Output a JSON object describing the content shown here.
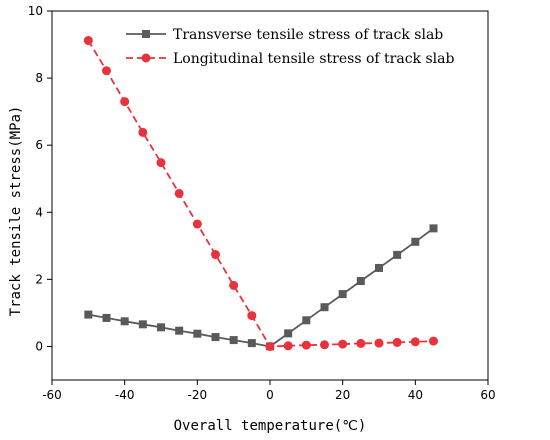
{
  "chart_data": {
    "type": "line",
    "xlabel": "Overall temperature(℃)",
    "ylabel": "Track tensile stress(MPa)",
    "xlim": [
      -60,
      60
    ],
    "ylim": [
      -1,
      10
    ],
    "xticks": [
      -60,
      -40,
      -20,
      0,
      20,
      40,
      60
    ],
    "yticks": [
      0,
      2,
      4,
      6,
      8,
      10
    ],
    "grid": false,
    "legend_position": "top-right",
    "series": [
      {
        "name": "Transverse tensile stress of track slab",
        "color": "#5a5a5a",
        "marker": "square",
        "line_style": "solid",
        "x": [
          -50,
          -45,
          -40,
          -35,
          -30,
          -25,
          -20,
          -15,
          -10,
          -5,
          0,
          5,
          10,
          15,
          20,
          25,
          30,
          35,
          40,
          45
        ],
        "y": [
          0.95,
          0.85,
          0.75,
          0.66,
          0.57,
          0.47,
          0.38,
          0.28,
          0.19,
          0.1,
          0.0,
          0.39,
          0.78,
          1.17,
          1.56,
          1.95,
          2.34,
          2.73,
          3.12,
          3.52
        ]
      },
      {
        "name": "Longitudinal tensile stress of track slab",
        "color": "#e8323c",
        "marker": "circle",
        "line_style": "dashed",
        "x": [
          -50,
          -45,
          -40,
          -35,
          -30,
          -25,
          -20,
          -15,
          -10,
          -5,
          0,
          5,
          10,
          15,
          20,
          25,
          30,
          35,
          40,
          45
        ],
        "y": [
          9.12,
          8.22,
          7.3,
          6.38,
          5.48,
          4.56,
          3.65,
          2.74,
          1.82,
          0.92,
          0.0,
          0.02,
          0.04,
          0.05,
          0.07,
          0.09,
          0.1,
          0.12,
          0.14,
          0.16
        ]
      }
    ]
  }
}
